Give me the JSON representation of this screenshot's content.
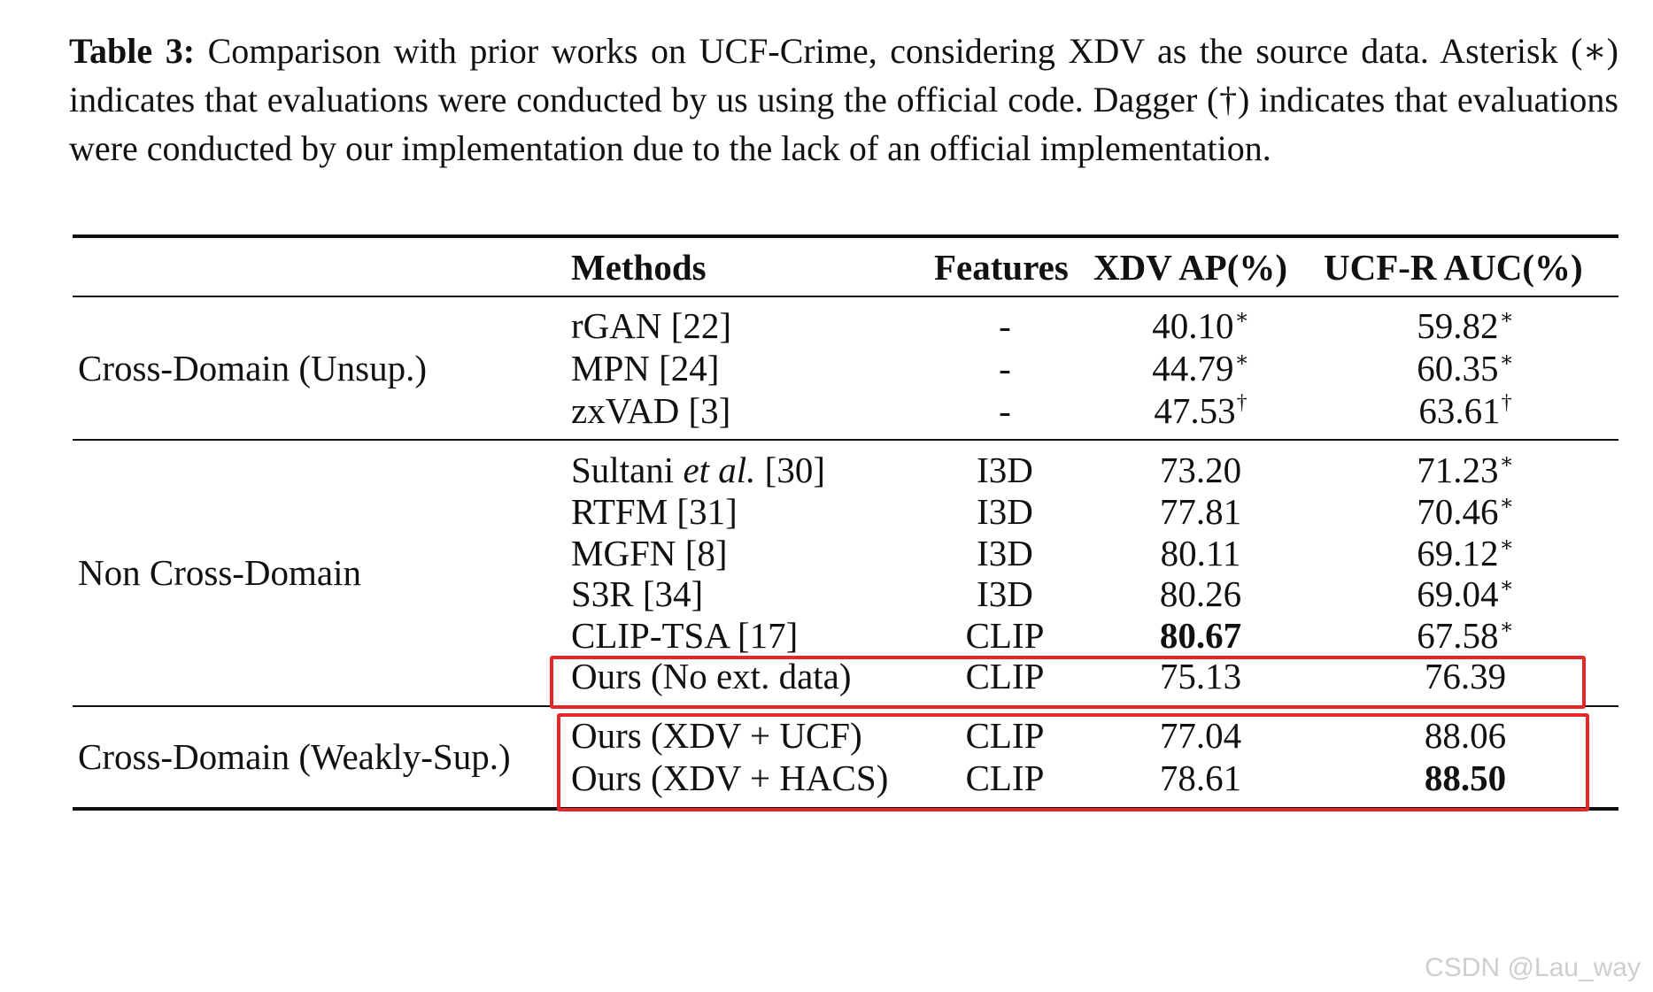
{
  "caption": {
    "label": "Table 3:",
    "text": " Comparison with prior works on UCF-Crime, considering XDV as the source data. Asterisk (∗) indicates that evaluations were conducted by us using the official code. Dagger (†) indicates that evaluations were conducted by our implementation due to the lack of an official implementation."
  },
  "headers": {
    "methods": "Methods",
    "features": "Features",
    "xdv_ap": "XDV AP(%)",
    "ucf_auc": "UCF-R AUC(%)"
  },
  "groups": [
    {
      "label": "Cross-Domain (Unsup.)"
    },
    {
      "label": "Non Cross-Domain"
    },
    {
      "label": "Cross-Domain (Weakly-Sup.)"
    }
  ],
  "rows": [
    {
      "method": "rGAN [22]",
      "features": "-",
      "xdv": "40.10",
      "xdv_mark": "∗",
      "ucf": "59.82",
      "ucf_mark": "∗"
    },
    {
      "method": "MPN [24]",
      "features": "-",
      "xdv": "44.79",
      "xdv_mark": "∗",
      "ucf": "60.35",
      "ucf_mark": "∗"
    },
    {
      "method": "zxVAD [3]",
      "features": "-",
      "xdv": "47.53",
      "xdv_mark": "†",
      "ucf": "63.61",
      "ucf_mark": "†"
    },
    {
      "method_a": "Sultani ",
      "method_b": "et al.",
      "method_c": " [30]",
      "features": "I3D",
      "xdv": "73.20",
      "ucf": "71.23",
      "ucf_mark": "∗"
    },
    {
      "method": "RTFM [31]",
      "features": "I3D",
      "xdv": "77.81",
      "ucf": "70.46",
      "ucf_mark": "∗"
    },
    {
      "method": "MGFN [8]",
      "features": "I3D",
      "xdv": "80.11",
      "ucf": "69.12",
      "ucf_mark": "∗"
    },
    {
      "method": "S3R [34]",
      "features": "I3D",
      "xdv": "80.26",
      "ucf": "69.04",
      "ucf_mark": "∗"
    },
    {
      "method": "CLIP-TSA [17]",
      "features": "CLIP",
      "xdv": "80.67",
      "ucf": "67.58",
      "ucf_mark": "∗"
    },
    {
      "method": "Ours (No ext. data)",
      "features": "CLIP",
      "xdv": "75.13",
      "ucf": "76.39"
    },
    {
      "method": "Ours (XDV + UCF)",
      "features": "CLIP",
      "xdv": "77.04",
      "ucf": "88.06"
    },
    {
      "method": "Ours (XDV + HACS)",
      "features": "CLIP",
      "xdv": "78.61",
      "ucf": "88.50"
    }
  ],
  "watermark": "CSDN @Lau_way",
  "colors": {
    "highlight_box": "#e8262a",
    "text": "#111111"
  }
}
